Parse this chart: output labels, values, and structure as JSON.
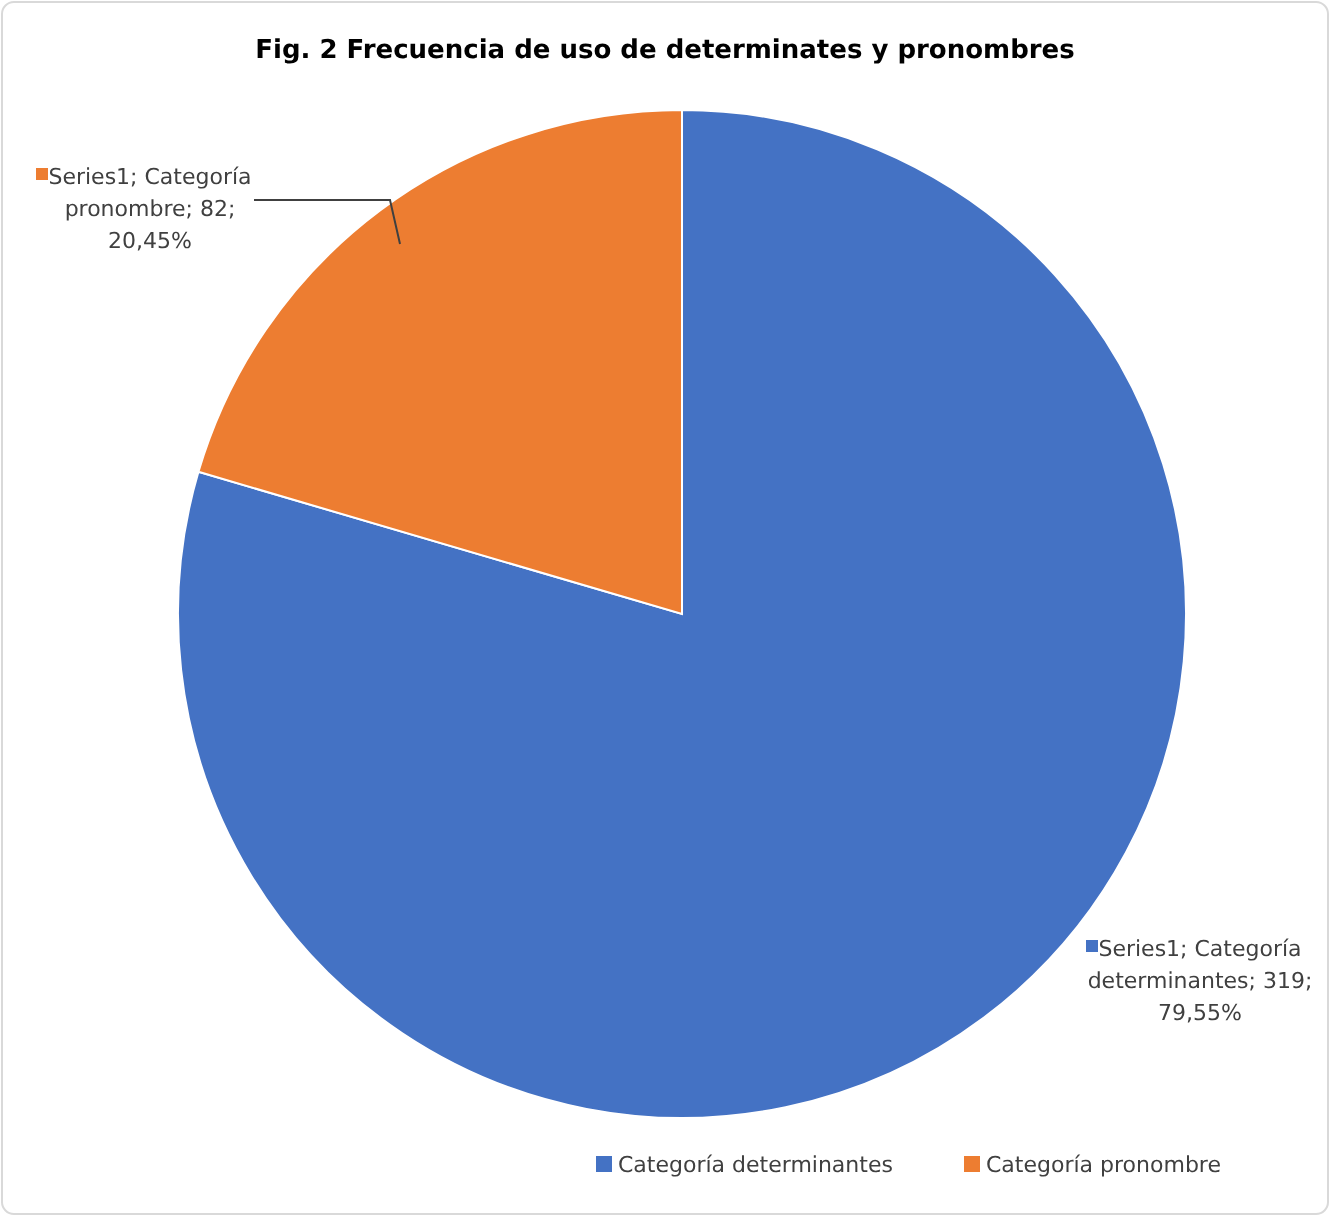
{
  "chart_data": {
    "type": "pie",
    "title": "Fig. 2 Frecuencia de uso de determinates y pronombres",
    "categories": [
      "Categoría determinantes",
      "Categoría pronombre"
    ],
    "values": [
      319,
      82
    ],
    "colors": [
      "#4472c4",
      "#ed7d31"
    ],
    "value_labels": [
      "Series1; Categoría determinantes; 319; 79,55%",
      "Series1; Categoría pronombre; 82; 20,45%"
    ],
    "legend": "bottom"
  }
}
